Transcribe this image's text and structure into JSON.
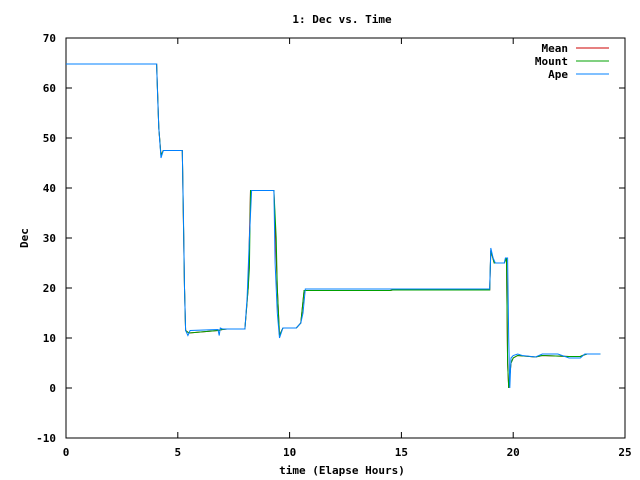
{
  "chart_data": {
    "type": "line",
    "title": "1: Dec vs. Time",
    "xlabel": "time (Elapse Hours)",
    "ylabel": "Dec",
    "xlim": [
      0,
      25
    ],
    "ylim": [
      -10,
      70
    ],
    "xticks": [
      0,
      5,
      10,
      15,
      20,
      25
    ],
    "yticks": [
      -10,
      0,
      10,
      20,
      30,
      40,
      50,
      60,
      70
    ],
    "grid": false,
    "legend_position": "top-right",
    "series": [
      {
        "name": "Mean",
        "color": "#cc0000",
        "points": [
          [
            0,
            64.8
          ],
          [
            4.05,
            64.8
          ],
          [
            4.15,
            52
          ],
          [
            4.25,
            46.5
          ],
          [
            4.35,
            47.5
          ],
          [
            5.2,
            47.5
          ],
          [
            5.3,
            20
          ],
          [
            5.35,
            11.5
          ],
          [
            5.5,
            11
          ],
          [
            6.8,
            11.5
          ],
          [
            7.0,
            11.7
          ],
          [
            7.2,
            11.8
          ],
          [
            8.0,
            11.8
          ],
          [
            8.15,
            20
          ],
          [
            8.25,
            39.5
          ],
          [
            9.3,
            39.5
          ],
          [
            9.45,
            20
          ],
          [
            9.55,
            10.5
          ],
          [
            9.7,
            12
          ],
          [
            10.3,
            12.0
          ],
          [
            10.5,
            13
          ],
          [
            10.65,
            19.5
          ],
          [
            14.5,
            19.5
          ],
          [
            14.6,
            19.6
          ],
          [
            18.95,
            19.6
          ],
          [
            19.0,
            27.5
          ],
          [
            19.15,
            25
          ],
          [
            19.6,
            25
          ],
          [
            19.7,
            26
          ],
          [
            19.75,
            5
          ],
          [
            19.8,
            0
          ],
          [
            19.9,
            5
          ],
          [
            20.0,
            6
          ],
          [
            20.2,
            6.5
          ],
          [
            21.0,
            6.2
          ],
          [
            21.3,
            6.5
          ],
          [
            22.5,
            6.3
          ],
          [
            23.0,
            6.3
          ],
          [
            23.1,
            6.5
          ],
          [
            23.3,
            6.8
          ],
          [
            23.9,
            6.8
          ]
        ]
      },
      {
        "name": "Mount",
        "color": "#00a000",
        "points": [
          [
            0,
            64.8
          ],
          [
            4.05,
            64.8
          ],
          [
            4.15,
            52
          ],
          [
            4.25,
            46.5
          ],
          [
            4.35,
            47.5
          ],
          [
            5.2,
            47.5
          ],
          [
            5.3,
            20
          ],
          [
            5.35,
            11.5
          ],
          [
            5.5,
            11
          ],
          [
            6.8,
            11.5
          ],
          [
            7.0,
            11.7
          ],
          [
            7.2,
            11.8
          ],
          [
            8.0,
            11.8
          ],
          [
            8.15,
            20
          ],
          [
            8.2,
            24
          ],
          [
            8.25,
            39.5
          ],
          [
            9.3,
            39.5
          ],
          [
            9.4,
            30
          ],
          [
            9.45,
            20
          ],
          [
            9.55,
            10.5
          ],
          [
            9.7,
            12
          ],
          [
            10.3,
            12.0
          ],
          [
            10.5,
            13
          ],
          [
            10.65,
            19.5
          ],
          [
            14.5,
            19.5
          ],
          [
            14.6,
            19.6
          ],
          [
            18.95,
            19.6
          ],
          [
            19.0,
            27.5
          ],
          [
            19.15,
            25
          ],
          [
            19.6,
            25
          ],
          [
            19.7,
            26
          ],
          [
            19.75,
            5
          ],
          [
            19.8,
            0
          ],
          [
            19.9,
            5
          ],
          [
            20.0,
            6
          ],
          [
            20.2,
            6.5
          ],
          [
            21.0,
            6.2
          ],
          [
            21.3,
            6.5
          ],
          [
            22.5,
            6.3
          ],
          [
            23.0,
            6.3
          ],
          [
            23.1,
            6.5
          ],
          [
            23.3,
            6.8
          ],
          [
            23.9,
            6.8
          ]
        ]
      },
      {
        "name": "Ape",
        "color": "#0080ff",
        "points": [
          [
            0,
            64.8
          ],
          [
            4.05,
            64.8
          ],
          [
            4.1,
            58
          ],
          [
            4.15,
            52
          ],
          [
            4.25,
            46
          ],
          [
            4.35,
            47.5
          ],
          [
            5.2,
            47.5
          ],
          [
            5.25,
            35
          ],
          [
            5.3,
            20
          ],
          [
            5.35,
            11.5
          ],
          [
            5.45,
            10.5
          ],
          [
            5.55,
            11.5
          ],
          [
            6.8,
            11.7
          ],
          [
            6.85,
            10.5
          ],
          [
            6.9,
            12
          ],
          [
            7.0,
            11.8
          ],
          [
            8.0,
            11.8
          ],
          [
            8.1,
            18
          ],
          [
            8.2,
            30
          ],
          [
            8.3,
            39.5
          ],
          [
            9.3,
            39.5
          ],
          [
            9.35,
            25
          ],
          [
            9.45,
            15
          ],
          [
            9.55,
            10
          ],
          [
            9.7,
            12
          ],
          [
            10.3,
            12
          ],
          [
            10.4,
            12.5
          ],
          [
            10.5,
            13
          ],
          [
            10.6,
            15
          ],
          [
            10.7,
            19.8
          ],
          [
            18.95,
            19.8
          ],
          [
            19.0,
            28
          ],
          [
            19.1,
            26
          ],
          [
            19.2,
            25
          ],
          [
            19.6,
            25
          ],
          [
            19.65,
            26
          ],
          [
            19.75,
            26
          ],
          [
            19.8,
            10
          ],
          [
            19.85,
            0
          ],
          [
            19.9,
            6
          ],
          [
            20.0,
            6.5
          ],
          [
            20.2,
            6.8
          ],
          [
            20.4,
            6.5
          ],
          [
            21.0,
            6.2
          ],
          [
            21.3,
            6.8
          ],
          [
            22.0,
            6.8
          ],
          [
            22.5,
            6.0
          ],
          [
            23.0,
            6.0
          ],
          [
            23.2,
            6.8
          ],
          [
            23.9,
            6.8
          ]
        ]
      }
    ]
  }
}
